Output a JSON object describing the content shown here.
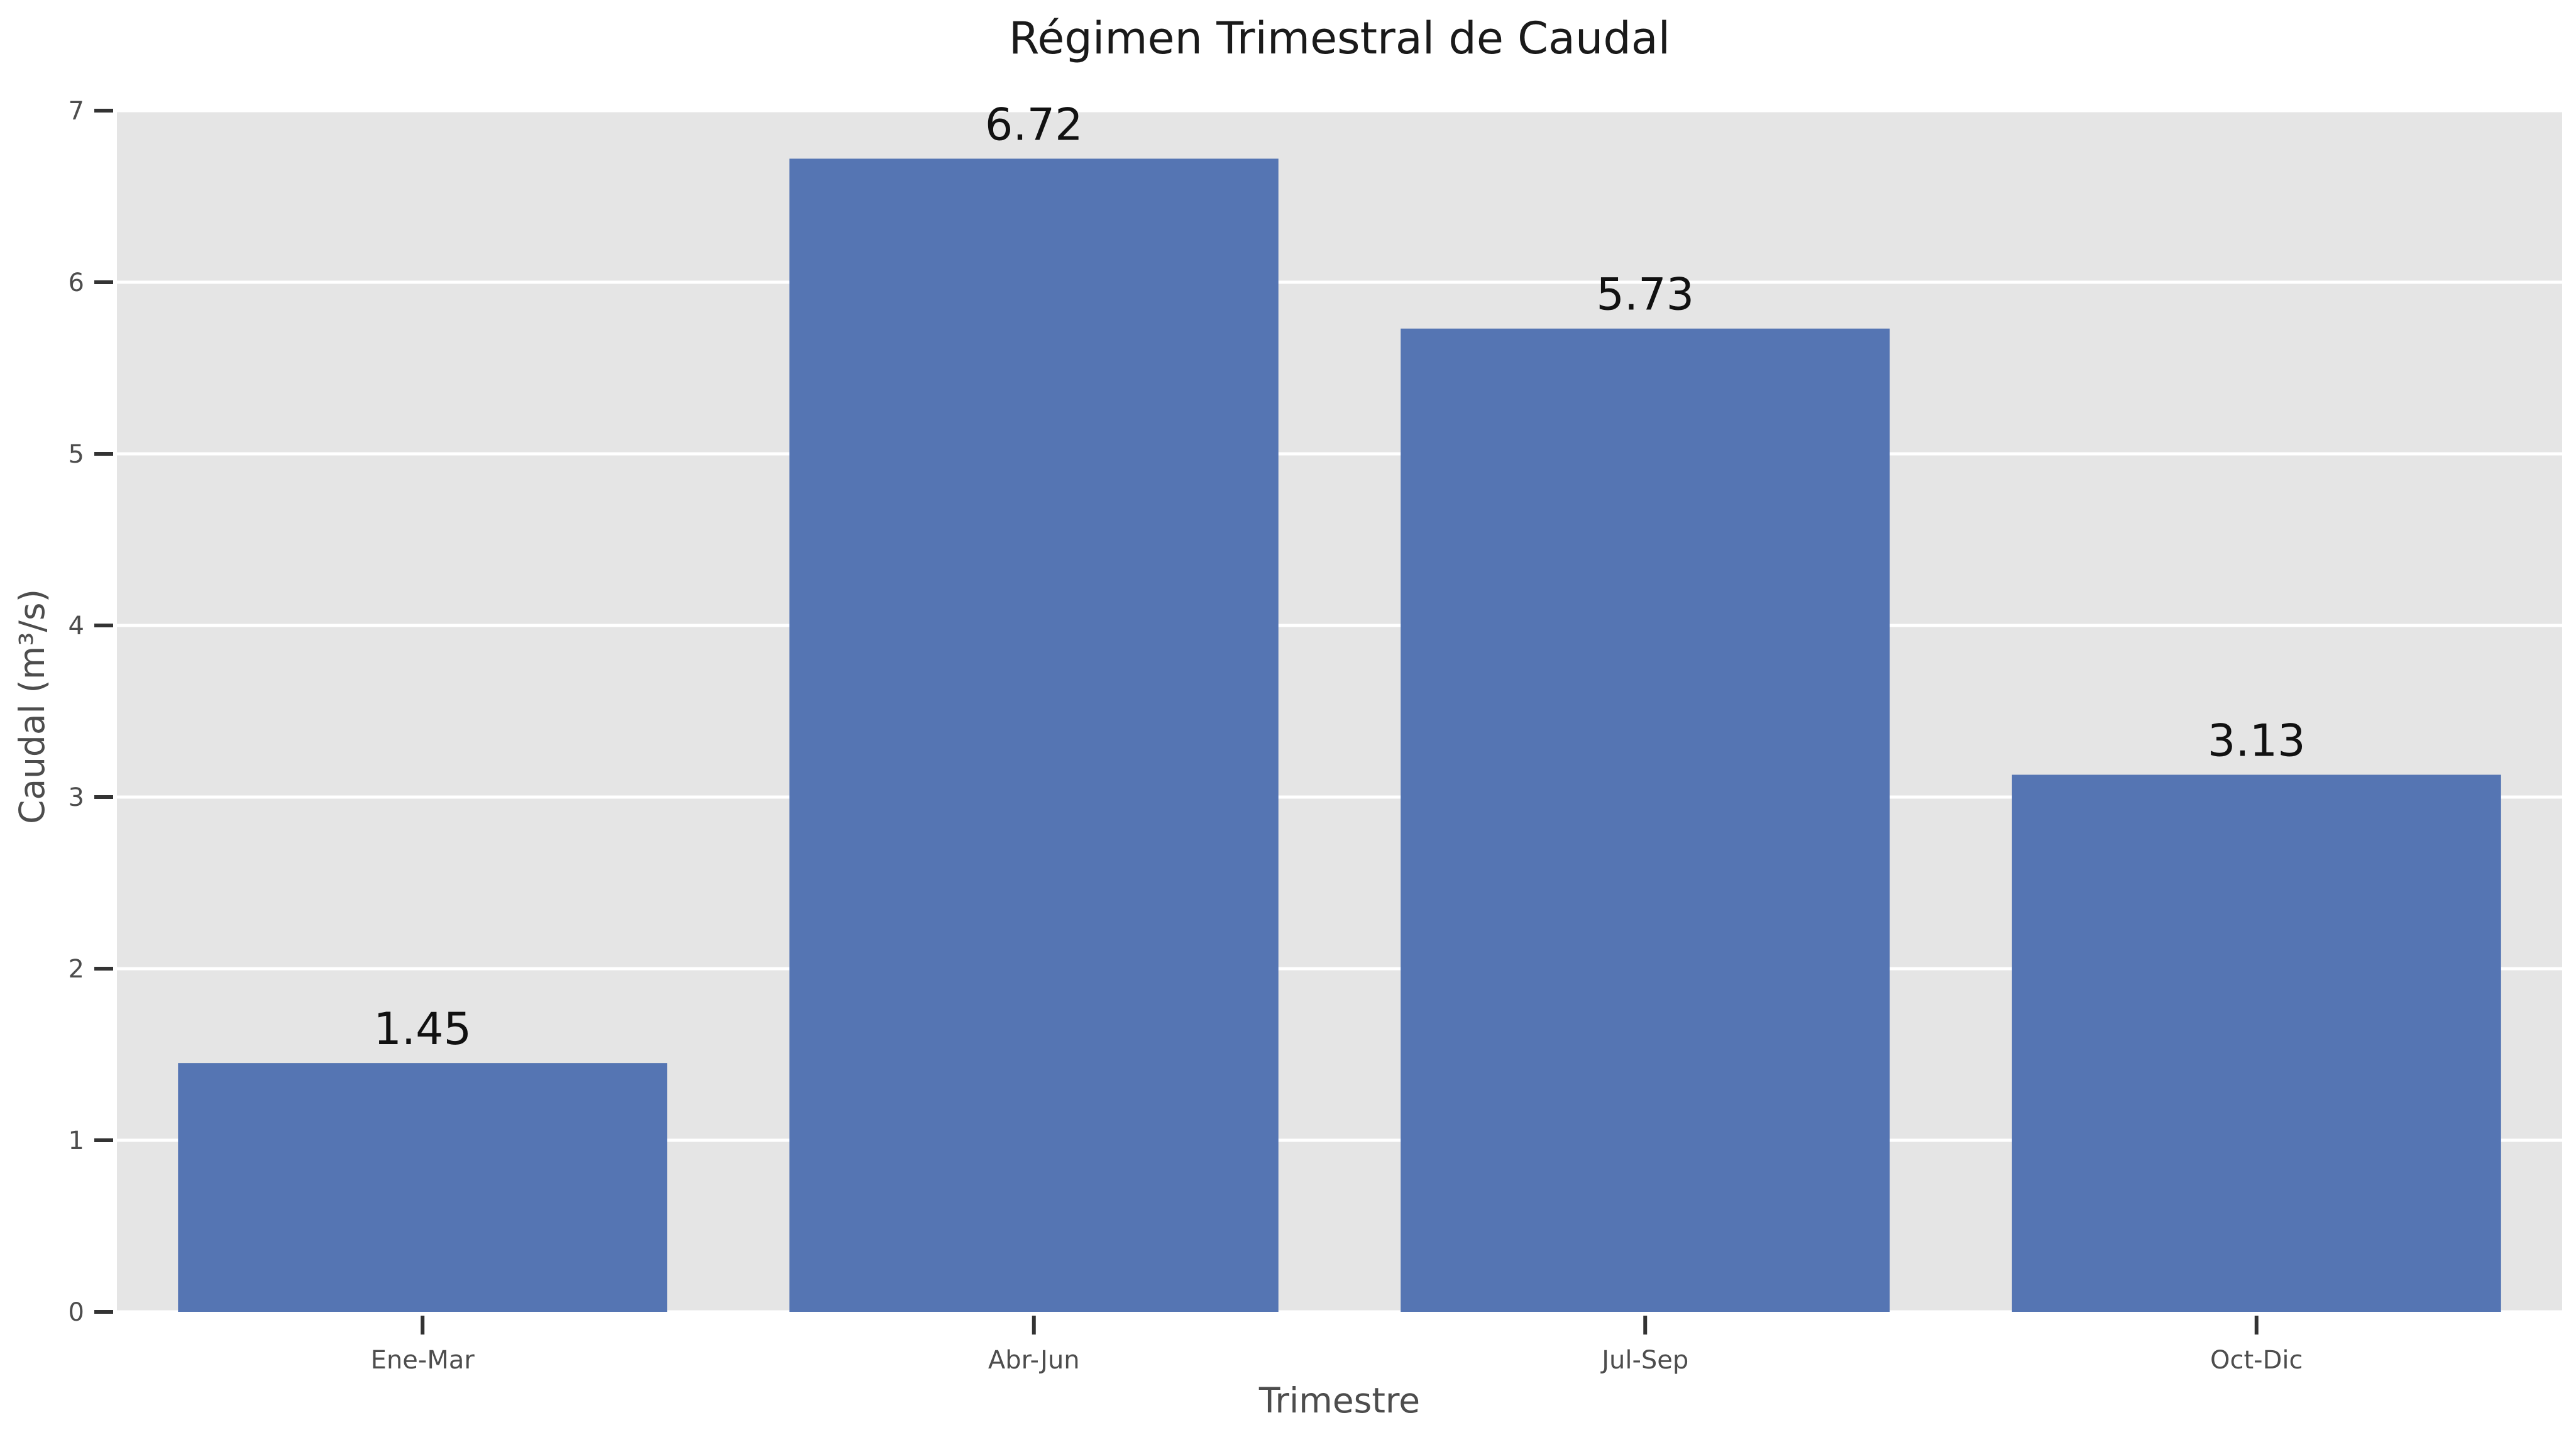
{
  "chart_data": {
    "type": "bar",
    "title": "Régimen Trimestral de Caudal",
    "xlabel": "Trimestre",
    "ylabel": "Caudal (m³/s)",
    "categories": [
      "Ene-Mar",
      "Abr-Jun",
      "Jul-Sep",
      "Oct-Dic"
    ],
    "values": [
      1.45,
      6.72,
      5.73,
      3.13
    ],
    "data_labels": [
      "1.45",
      "6.72",
      "5.73",
      "3.13"
    ],
    "yticks": [
      0,
      1,
      2,
      3,
      4,
      5,
      6,
      7
    ],
    "ylim": [
      0,
      7
    ],
    "grid": true,
    "legend": "none",
    "colors": {
      "bar": "#5575b3",
      "plot_background": "#e5e5e5",
      "grid": "#ffffff",
      "tick": "#333333"
    }
  }
}
